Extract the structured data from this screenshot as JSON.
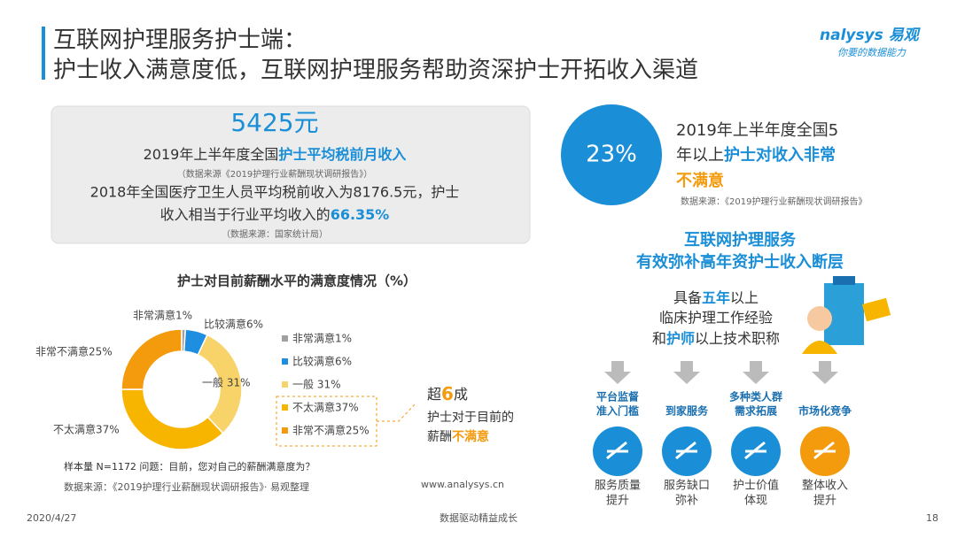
{
  "header": {
    "title_line1": "互联网护理服务护士端：",
    "title_line2": "护士收入满意度低，互联网护理服务帮助资深护士开拓收入渠道",
    "logo": "nalysys 易观",
    "logo_slogan": "你要的数据能力"
  },
  "income_box": {
    "amount": "5425元",
    "line1_prefix": "2019年上半年度全国",
    "line1_highlight": "护士平均税前月收入",
    "source1": "（数据来源《2019护理行业薪酬现状调研报告》）",
    "line2": "2018年全国医疗卫生人员平均税前收入为8176.5元，护士",
    "line3_prefix": "收入相当于行业平均收入的",
    "line3_highlight": "66.35%",
    "source2": "（数据来源：国家统计局）"
  },
  "dissatisfaction": {
    "percent": "23%",
    "line1": "2019年上半年度全国5",
    "line2_prefix": "年以上",
    "line2_highlight": "护士对收入非常",
    "line3_highlight": "不满意",
    "source": "数据来源：《2019护理行业薪酬现状调研报告》"
  },
  "chart_data": {
    "type": "donut",
    "title": "护士对目前薪酬水平的满意度情况（%）",
    "categories": [
      "非常满意1%",
      "比较满意6%",
      "一般 31%",
      "不太满意37%",
      "非常不满意25%"
    ],
    "values": [
      1,
      6,
      31,
      37,
      25
    ],
    "colors": [
      "#a0a0a0",
      "#1e8fe0",
      "#f8d36a",
      "#f7b500",
      "#f39a0d"
    ],
    "note": "样本量 N=1172  问题：目前，您对自己的薪酬满意度为？",
    "source": "数据来源：《2019护理行业薪酬现状调研报告》· 易观整理",
    "website": "www.analysys.cn"
  },
  "callout": {
    "prefix": "超",
    "highlight": "6",
    "suffix": "成",
    "line2": "护士对于目前的",
    "line3_prefix": "薪酬",
    "line3_highlight": "不满意"
  },
  "right": {
    "title_line1": "互联网护理服务",
    "title_line2": "有效弥补高年资护士收入断层",
    "q1_prefix": "具备",
    "q1_highlight": "五年",
    "q1_suffix": "以上",
    "q2": "临床护理工作经验",
    "q3_prefix": "和",
    "q3_highlight": "护师",
    "q3_suffix": "以上技术职称"
  },
  "benefits": [
    {
      "label": [
        "平台监督",
        "准入门槛"
      ],
      "outcome": [
        "服务质量",
        "提升"
      ]
    },
    {
      "label": [
        "到家服务"
      ],
      "outcome": [
        "服务缺口",
        "弥补"
      ]
    },
    {
      "label": [
        "多种类人群",
        "需求拓展"
      ],
      "outcome": [
        "护士价值",
        "体现"
      ]
    },
    {
      "label": [
        "市场化竞争"
      ],
      "outcome": [
        "整体收入",
        "提升"
      ]
    }
  ],
  "footer": {
    "date": "2020/4/27",
    "slogan": "数据驱动精益成长",
    "page": "18"
  }
}
